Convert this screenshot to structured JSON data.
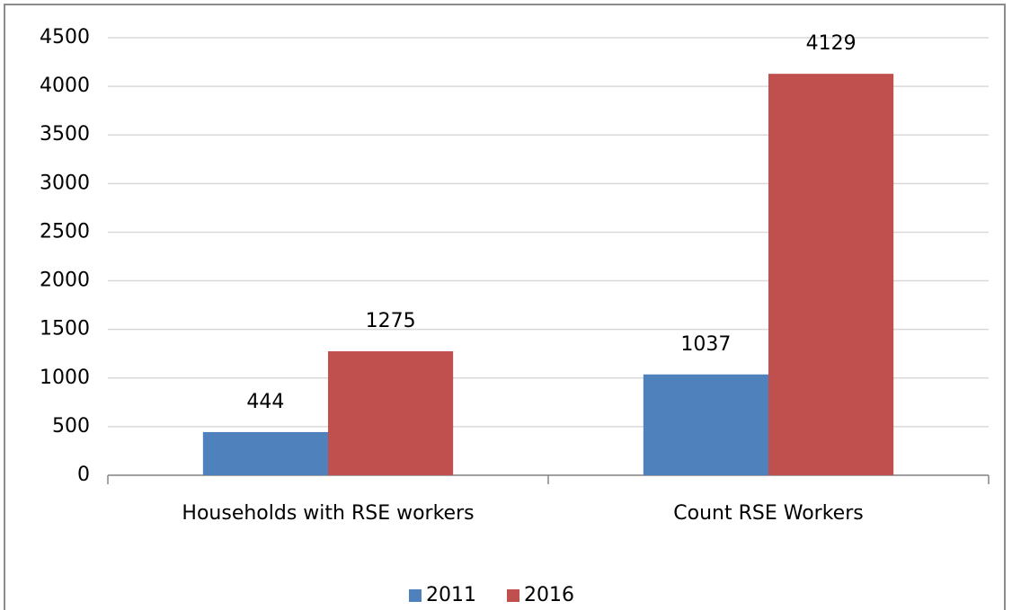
{
  "chart_data": {
    "type": "bar",
    "categories": [
      "Households with RSE workers",
      "Count RSE Workers"
    ],
    "series": [
      {
        "name": "2011",
        "color": "#4f81bd",
        "values": [
          444,
          1037
        ]
      },
      {
        "name": "2016",
        "color": "#c0504d",
        "values": [
          1275,
          4129
        ]
      }
    ],
    "ylim": [
      0,
      4500
    ],
    "yticks": [
      0,
      500,
      1000,
      1500,
      2000,
      2500,
      3000,
      3500,
      4000,
      4500
    ],
    "grid": true,
    "legend": "bottom"
  }
}
